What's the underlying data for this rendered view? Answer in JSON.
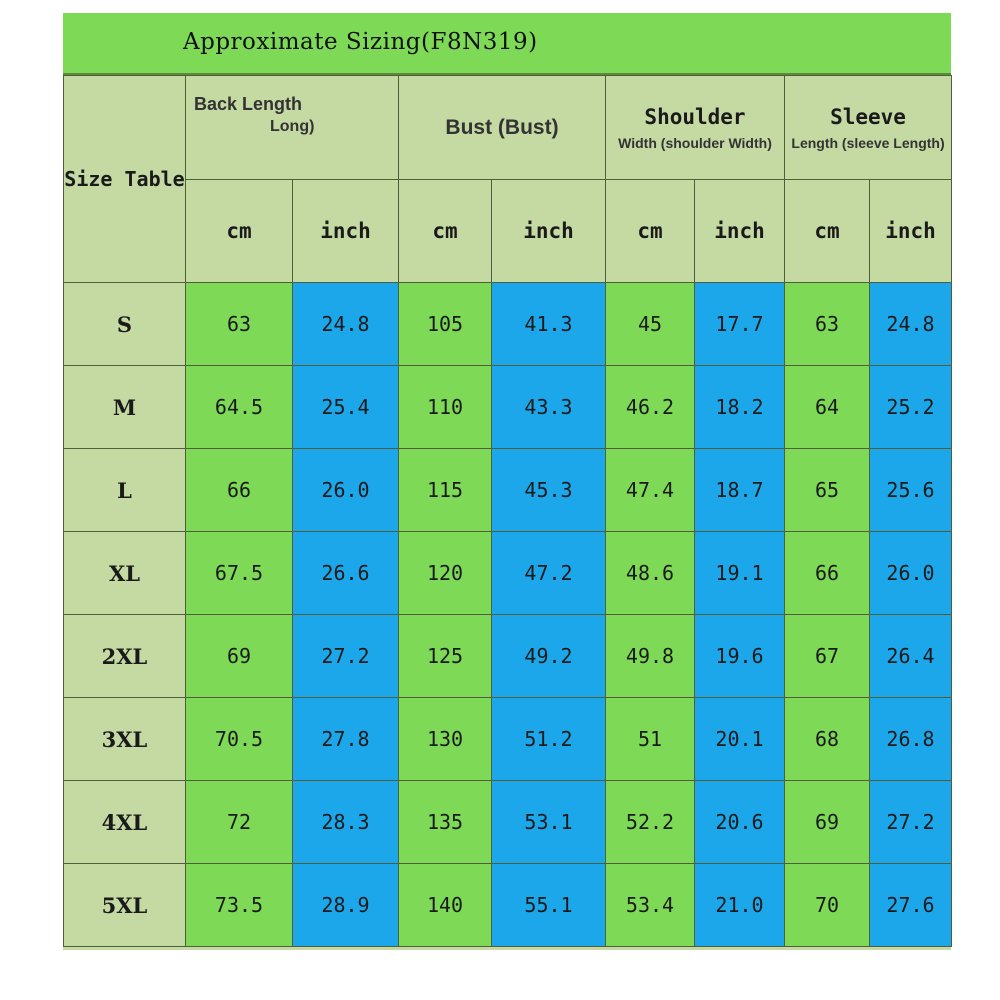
{
  "title": "Approximate Sizing(F8N319)",
  "size_header": "Size Table",
  "groups": {
    "back": {
      "line1": "Back Length",
      "line2": "Long)"
    },
    "bust": {
      "main": "Bust (Bust)"
    },
    "shoulder": {
      "main": "Shoulder",
      "sub": "Width (shoulder Width)"
    },
    "sleeve": {
      "main": "Sleeve",
      "sub": "Length (sleeve Length)"
    }
  },
  "units": [
    "cm",
    "inch",
    "cm",
    "inch",
    "cm",
    "inch",
    "cm",
    "inch"
  ],
  "rows": [
    {
      "size": "S",
      "values": [
        "63",
        "24.8",
        "105",
        "41.3",
        "45",
        "17.7",
        "63",
        "24.8"
      ]
    },
    {
      "size": "M",
      "values": [
        "64.5",
        "25.4",
        "110",
        "43.3",
        "46.2",
        "18.2",
        "64",
        "25.2"
      ]
    },
    {
      "size": "L",
      "values": [
        "66",
        "26.0",
        "115",
        "45.3",
        "47.4",
        "18.7",
        "65",
        "25.6"
      ]
    },
    {
      "size": "XL",
      "values": [
        "67.5",
        "26.6",
        "120",
        "47.2",
        "48.6",
        "19.1",
        "66",
        "26.0"
      ]
    },
    {
      "size": "2XL",
      "values": [
        "69",
        "27.2",
        "125",
        "49.2",
        "49.8",
        "19.6",
        "67",
        "26.4"
      ]
    },
    {
      "size": "3XL",
      "values": [
        "70.5",
        "27.8",
        "130",
        "51.2",
        "51",
        "20.1",
        "68",
        "26.8"
      ]
    },
    {
      "size": "4XL",
      "values": [
        "72",
        "28.3",
        "135",
        "53.1",
        "52.2",
        "20.6",
        "69",
        "27.2"
      ]
    },
    {
      "size": "5XL",
      "values": [
        "73.5",
        "28.9",
        "140",
        "55.1",
        "53.4",
        "21.0",
        "70",
        "27.6"
      ]
    }
  ],
  "colors": {
    "title_bar": "#7ed957",
    "header_bg": "#c5d9a3",
    "cm_cell": "#7ed957",
    "inch_cell": "#1ca7ea"
  }
}
